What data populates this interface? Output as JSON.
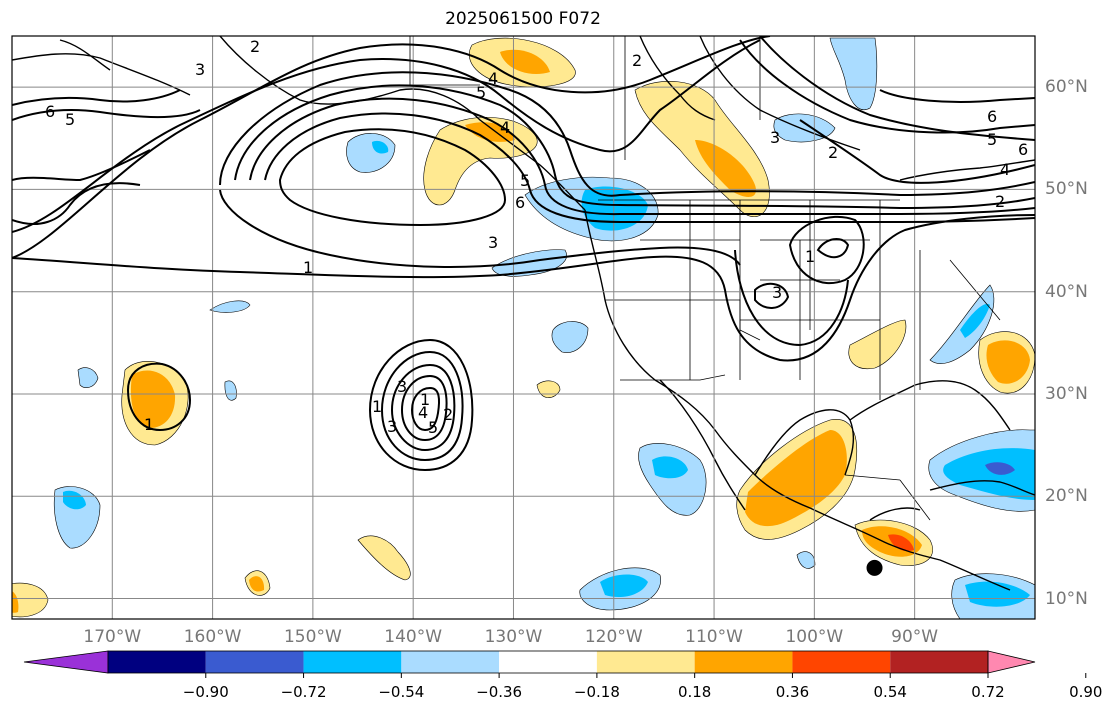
{
  "title": "2025061500 F072",
  "map": {
    "projection": "cylindrical",
    "lon_range": [
      -180,
      -78
    ],
    "lat_range": [
      8,
      65
    ],
    "lon_ticks": [
      "170°W",
      "160°W",
      "150°W",
      "140°W",
      "130°W",
      "120°W",
      "110°W",
      "100°W",
      "90°W"
    ],
    "lat_ticks": [
      "10°N",
      "20°N",
      "30°N",
      "40°N",
      "50°N",
      "60°N"
    ],
    "grid": true,
    "marker": {
      "lon": -94,
      "lat": 13,
      "shape": "filled circle",
      "color": "#000000"
    }
  },
  "contours": {
    "color": "#000000",
    "labels": [
      "6",
      "5",
      "2",
      "3",
      "4",
      "5",
      "6",
      "5",
      "4",
      "3",
      "2",
      "1",
      "6",
      "3",
      "5",
      "2",
      "6",
      "4",
      "2",
      "3",
      "1",
      "3",
      "1",
      "3",
      "2",
      "1",
      "5",
      "4",
      "1"
    ]
  },
  "colorbar": {
    "labels": [
      "−0.90",
      "−0.72",
      "−0.54",
      "−0.36",
      "−0.18",
      "0.18",
      "0.36",
      "0.54",
      "0.72",
      "0.90"
    ],
    "colors": [
      "#9a31d8",
      "#000080",
      "#3a5bd0",
      "#00bfff",
      "#aadcff",
      "#ffffff",
      "#ffe991",
      "#ffa500",
      "#ff4500",
      "#b22222",
      "#ff88b0"
    ]
  }
}
